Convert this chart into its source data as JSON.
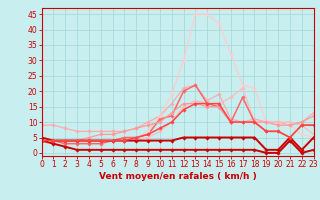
{
  "xlabel": "Vent moyen/en rafales ( km/h )",
  "xlim": [
    0,
    23
  ],
  "ylim": [
    -1,
    47
  ],
  "yticks": [
    0,
    5,
    10,
    15,
    20,
    25,
    30,
    35,
    40,
    45
  ],
  "xticks": [
    0,
    1,
    2,
    3,
    4,
    5,
    6,
    7,
    8,
    9,
    10,
    11,
    12,
    13,
    14,
    15,
    16,
    17,
    18,
    19,
    20,
    21,
    22,
    23
  ],
  "bg_color": "#c8eef0",
  "grid_color": "#a0d8d8",
  "series": [
    {
      "x": [
        0,
        1,
        2,
        3,
        4,
        5,
        6,
        7,
        8,
        9,
        10,
        11,
        12,
        13,
        14,
        15,
        16,
        17,
        18,
        19,
        20,
        21,
        22,
        23
      ],
      "y": [
        9,
        9,
        8,
        7,
        7,
        7,
        7,
        7,
        8,
        10,
        12,
        16,
        21,
        22,
        17,
        19,
        11,
        10,
        11,
        10,
        10,
        9,
        10,
        13
      ],
      "color": "#ffaaaa",
      "lw": 0.9,
      "marker": "D",
      "ms": 1.8
    },
    {
      "x": [
        0,
        1,
        2,
        3,
        4,
        5,
        6,
        7,
        8,
        9,
        10,
        11,
        12,
        13,
        14,
        15,
        16,
        17,
        18,
        19,
        20,
        21,
        22,
        23
      ],
      "y": [
        4,
        4,
        4,
        4,
        4,
        4,
        4,
        4,
        4,
        5,
        7,
        10,
        15,
        17,
        16,
        16,
        18,
        21,
        10,
        10,
        10,
        10,
        9,
        6
      ],
      "color": "#ffbbbb",
      "lw": 0.9,
      "marker": "D",
      "ms": 1.8
    },
    {
      "x": [
        0,
        1,
        2,
        3,
        4,
        5,
        6,
        7,
        8,
        9,
        10,
        11,
        12,
        13,
        14,
        15,
        16,
        17,
        18,
        19,
        20,
        21,
        22,
        23
      ],
      "y": [
        4,
        4,
        3,
        3,
        3,
        3,
        4,
        5,
        5,
        6,
        11,
        12,
        20,
        22,
        16,
        15,
        10,
        18,
        10,
        7,
        7,
        5,
        9,
        9
      ],
      "color": "#ff6666",
      "lw": 1.1,
      "marker": "D",
      "ms": 1.8
    },
    {
      "x": [
        0,
        1,
        2,
        3,
        4,
        5,
        6,
        7,
        8,
        9,
        10,
        11,
        12,
        13,
        14,
        15,
        16,
        17,
        18,
        19,
        20,
        21,
        22,
        23
      ],
      "y": [
        4,
        4,
        4,
        4,
        4,
        4,
        4,
        4,
        5,
        7,
        12,
        19,
        30,
        45,
        45,
        42,
        32,
        22,
        21,
        10,
        9,
        9,
        6,
        5
      ],
      "color": "#ffcccc",
      "lw": 0.9,
      "marker": "D",
      "ms": 1.8
    },
    {
      "x": [
        0,
        1,
        2,
        3,
        4,
        5,
        6,
        7,
        8,
        9,
        10,
        11,
        12,
        13,
        14,
        15,
        16,
        17,
        18,
        19,
        20,
        21,
        22,
        23
      ],
      "y": [
        4,
        4,
        4,
        4,
        5,
        6,
        6,
        7,
        8,
        9,
        10,
        13,
        16,
        16,
        15,
        15,
        10,
        10,
        10,
        10,
        9,
        9,
        10,
        12
      ],
      "color": "#ff9999",
      "lw": 0.9,
      "marker": "D",
      "ms": 1.8
    },
    {
      "x": [
        0,
        1,
        2,
        3,
        4,
        5,
        6,
        7,
        8,
        9,
        10,
        11,
        12,
        13,
        14,
        15,
        16,
        17,
        18,
        19,
        20,
        21,
        22,
        23
      ],
      "y": [
        5,
        4,
        4,
        4,
        4,
        4,
        4,
        4,
        4,
        4,
        4,
        4,
        5,
        5,
        5,
        5,
        5,
        5,
        5,
        1,
        1,
        5,
        1,
        5
      ],
      "color": "#cc0000",
      "lw": 1.4,
      "marker": "D",
      "ms": 1.8
    },
    {
      "x": [
        0,
        1,
        2,
        3,
        4,
        5,
        6,
        7,
        8,
        9,
        10,
        11,
        12,
        13,
        14,
        15,
        16,
        17,
        18,
        19,
        20,
        21,
        22,
        23
      ],
      "y": [
        4,
        3,
        2,
        1,
        1,
        1,
        1,
        1,
        1,
        1,
        1,
        1,
        1,
        1,
        1,
        1,
        1,
        1,
        1,
        0,
        0,
        4,
        0,
        1
      ],
      "color": "#cc0000",
      "lw": 1.4,
      "marker": "D",
      "ms": 1.8
    },
    {
      "x": [
        0,
        1,
        2,
        3,
        4,
        5,
        6,
        7,
        8,
        9,
        10,
        11,
        12,
        13,
        14,
        15,
        16,
        17,
        18,
        19,
        20,
        21,
        22,
        23
      ],
      "y": [
        4,
        4,
        4,
        4,
        4,
        4,
        4,
        4,
        5,
        6,
        8,
        10,
        14,
        16,
        16,
        16,
        10,
        10,
        10,
        7,
        7,
        5,
        9,
        9
      ],
      "color": "#ff4444",
      "lw": 1.1,
      "marker": "D",
      "ms": 1.8
    }
  ],
  "tick_fontsize": 5.5,
  "xlabel_fontsize": 6.5
}
